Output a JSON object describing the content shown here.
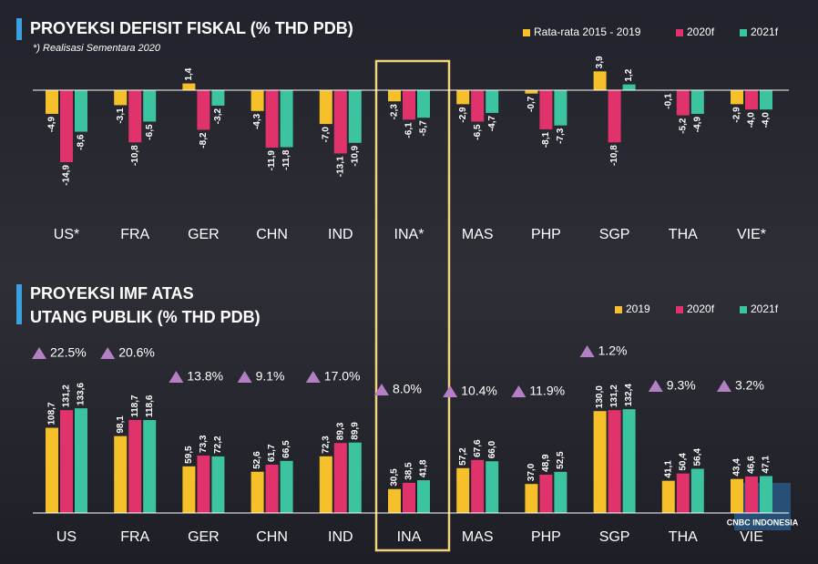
{
  "chart_data": [
    {
      "type": "bar",
      "title": "PROYEKSI DEFISIT FISKAL (% THD PDB)",
      "subtitle": "*) Realisasi Sementara 2020",
      "categories": [
        "US*",
        "FRA",
        "GER",
        "CHN",
        "IND",
        "INA*",
        "MAS",
        "PHP",
        "SGP",
        "THA",
        "VIE*"
      ],
      "series": [
        {
          "name": "Rata-rata 2015 - 2019",
          "color": "#f5c02a",
          "values": [
            -4.9,
            -3.1,
            1.4,
            -4.3,
            -7.0,
            -2.3,
            -2.9,
            -0.7,
            3.9,
            -0.1,
            -2.9
          ],
          "value_labels": [
            "-4,9",
            "-3,1",
            "1,4",
            "-4,3",
            "-7,0",
            "-2,3",
            "-2,9",
            "-0,7",
            "3,9",
            "-0,1",
            "-2,9"
          ]
        },
        {
          "name": "2020f",
          "color": "#e0336b",
          "values": [
            -14.9,
            -10.8,
            -8.2,
            -11.9,
            -13.1,
            -6.1,
            -6.5,
            -8.1,
            -10.8,
            -5.2,
            -4.0
          ],
          "value_labels": [
            "-14,9",
            "-10,8",
            "-8,2",
            "-11,9",
            "-13,1",
            "-6,1",
            "-6,5",
            "-8,1",
            "-10,8",
            "-5,2",
            "-4,0"
          ]
        },
        {
          "name": "2021f",
          "color": "#3cc4a0",
          "values": [
            -8.6,
            -6.5,
            -3.2,
            -11.8,
            -10.9,
            -5.7,
            -4.7,
            -7.3,
            1.2,
            -4.9,
            -4.0
          ],
          "value_labels": [
            "-8,6",
            "-6,5",
            "-3,2",
            "-11,8",
            "-10,9",
            "-5,7",
            "-4,7",
            "-7,3",
            "1,2",
            "-4,9",
            "-4,0"
          ]
        }
      ],
      "ylim": [
        -16,
        5
      ]
    },
    {
      "type": "bar",
      "title": [
        "PROYEKSI IMF ATAS",
        "UTANG PUBLIK (% THD PDB)"
      ],
      "categories": [
        "US",
        "FRA",
        "GER",
        "CHN",
        "IND",
        "INA",
        "MAS",
        "PHP",
        "SGP",
        "THA",
        "VIE"
      ],
      "series": [
        {
          "name": "2019",
          "color": "#f5c02a",
          "values": [
            108.7,
            98.1,
            59.5,
            52.6,
            72.3,
            30.5,
            57.2,
            37.0,
            130.0,
            41.1,
            43.4
          ],
          "value_labels": [
            "108,7",
            "98,1",
            "59,5",
            "52,6",
            "72,3",
            "30,5",
            "57,2",
            "37,0",
            "130,0",
            "41,1",
            "43,4"
          ]
        },
        {
          "name": "2020f",
          "color": "#e0336b",
          "values": [
            131.2,
            118.7,
            73.3,
            61.7,
            89.3,
            38.5,
            67.6,
            48.9,
            131.2,
            50.4,
            46.6
          ],
          "value_labels": [
            "131,2",
            "118,7",
            "73,3",
            "61,7",
            "89,3",
            "38,5",
            "67,6",
            "48,9",
            "131,2",
            "50,4",
            "46,6"
          ]
        },
        {
          "name": "2021f",
          "color": "#3cc4a0",
          "values": [
            133.6,
            118.6,
            72.2,
            66.5,
            89.9,
            41.8,
            66.0,
            52.5,
            132.4,
            56.4,
            47.1
          ],
          "value_labels": [
            "133,6",
            "118,6",
            "72,2",
            "66,5",
            "89,9",
            "41,8",
            "66,0",
            "52,5",
            "132,4",
            "56,4",
            "47,1"
          ]
        }
      ],
      "annotations": [
        "22.5%",
        "20.6%",
        "13.8%",
        "9.1%",
        "17.0%",
        "8.0%",
        "10.4%",
        "11.9%",
        "1.2%",
        "9.3%",
        "3.2%"
      ],
      "ylim": [
        0,
        140
      ]
    }
  ],
  "logo": "CNBC INDONESIA"
}
